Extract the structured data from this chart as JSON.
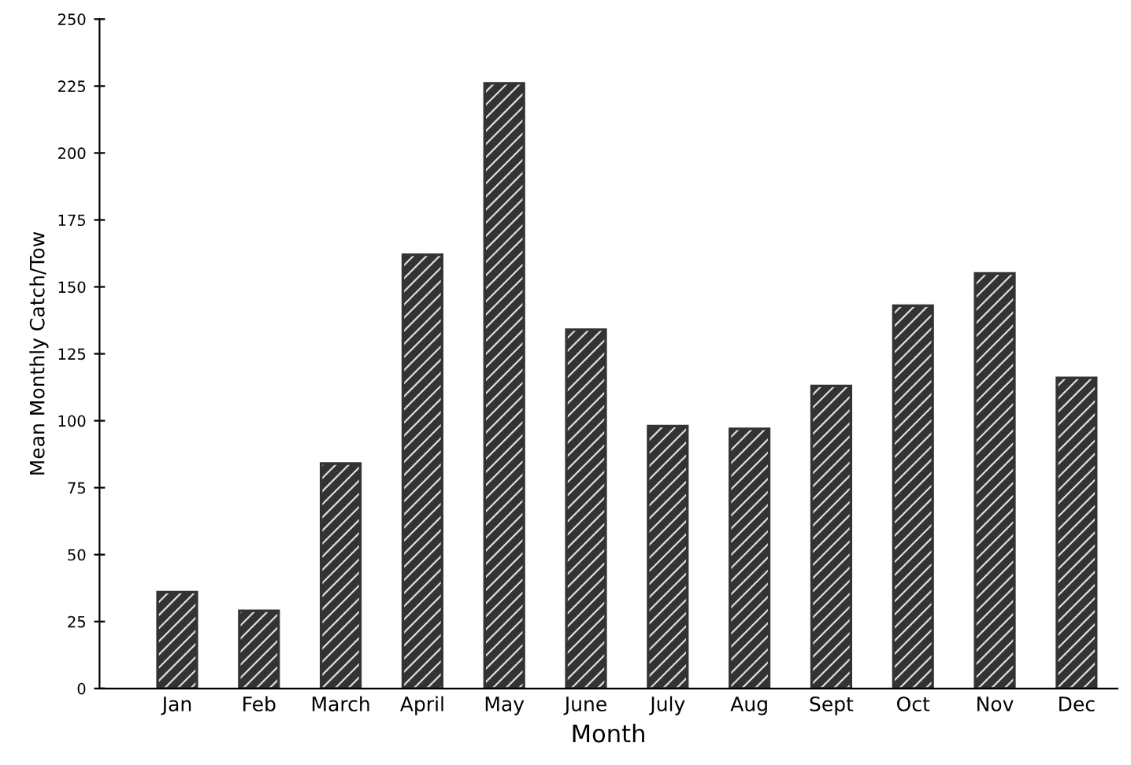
{
  "chart_data": {
    "type": "bar",
    "xlabel": "Month",
    "ylabel": "Mean Monthly Catch/Tow",
    "categories": [
      "Jan",
      "Feb",
      "March",
      "April",
      "May",
      "June",
      "July",
      "Aug",
      "Sept",
      "Oct",
      "Nov",
      "Dec"
    ],
    "values": [
      36,
      29,
      84,
      162,
      226,
      134,
      98,
      97,
      113,
      143,
      155,
      116
    ],
    "color": "#333333",
    "ylim": [
      0,
      250
    ],
    "yticks": [
      0,
      25,
      50,
      75,
      100,
      125,
      150,
      175,
      200,
      225,
      250
    ],
    "grid": false
  }
}
